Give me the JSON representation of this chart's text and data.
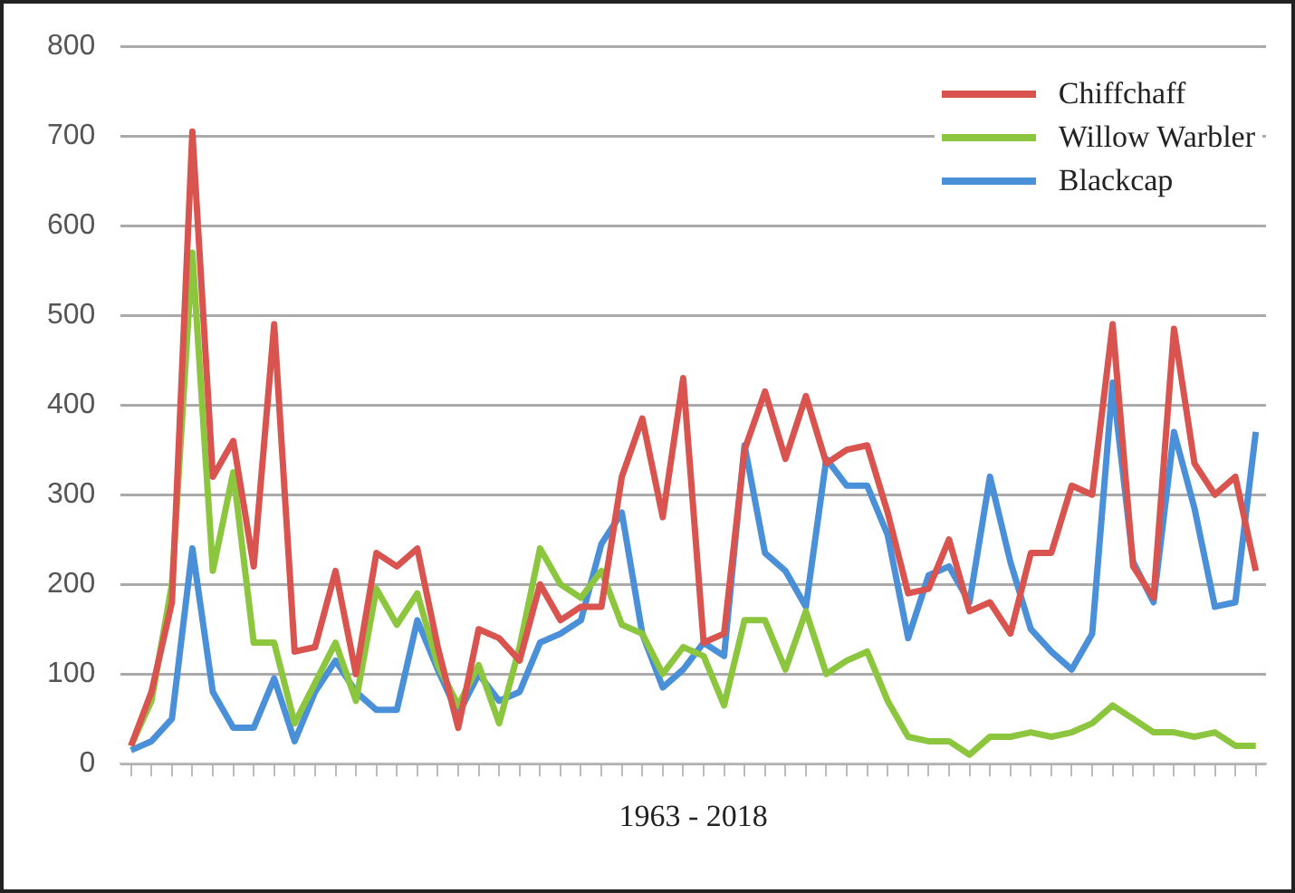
{
  "chart_data": {
    "type": "line",
    "xlabel": "1963 - 2018",
    "categories": [
      null,
      null,
      null,
      null,
      null,
      null,
      null,
      null,
      null,
      null,
      null,
      null,
      null,
      null,
      null,
      null,
      null,
      null,
      null,
      null,
      null,
      null,
      null,
      null,
      null,
      null,
      null,
      null,
      null,
      null,
      null,
      null,
      null,
      null,
      null,
      null,
      null,
      null,
      null,
      null,
      null,
      null,
      null,
      null,
      null,
      null,
      null,
      null,
      null,
      null,
      null,
      null,
      null,
      null,
      null,
      null
    ],
    "series": [
      {
        "name": "Chiffchaff",
        "color": "#d9534f",
        "values": [
          20,
          80,
          180,
          705,
          320,
          360,
          220,
          490,
          125,
          130,
          215,
          100,
          235,
          220,
          240,
          130,
          40,
          150,
          140,
          115,
          200,
          160,
          175,
          175,
          320,
          385,
          275,
          430,
          135,
          145,
          350,
          415,
          340,
          410,
          335,
          350,
          355,
          280,
          190,
          195,
          250,
          170,
          180,
          145,
          235,
          235,
          310,
          300,
          490,
          220,
          185,
          485,
          335,
          300,
          320,
          215
        ]
      },
      {
        "name": "Willow Warbler",
        "color": "#8cc63f",
        "values": [
          20,
          70,
          200,
          570,
          215,
          325,
          135,
          135,
          45,
          90,
          135,
          70,
          195,
          155,
          190,
          110,
          65,
          110,
          45,
          130,
          240,
          200,
          185,
          215,
          155,
          145,
          100,
          130,
          120,
          65,
          160,
          160,
          105,
          170,
          100,
          115,
          125,
          70,
          30,
          25,
          25,
          10,
          30,
          30,
          35,
          30,
          35,
          45,
          65,
          50,
          35,
          35,
          30,
          35,
          20,
          20
        ]
      },
      {
        "name": "Blackcap",
        "color": "#4a90d9",
        "values": [
          15,
          25,
          50,
          240,
          80,
          40,
          40,
          95,
          25,
          80,
          115,
          80,
          60,
          60,
          160,
          105,
          55,
          100,
          70,
          80,
          135,
          145,
          160,
          245,
          280,
          145,
          85,
          105,
          135,
          120,
          355,
          235,
          215,
          175,
          340,
          310,
          310,
          255,
          140,
          210,
          220,
          180,
          320,
          225,
          150,
          125,
          105,
          145,
          425,
          225,
          180,
          370,
          285,
          175,
          180,
          370
        ]
      }
    ],
    "ylim": [
      0,
      800
    ],
    "yticks": [
      0,
      100,
      200,
      300,
      400,
      500,
      600,
      700,
      800
    ],
    "grid": "y",
    "legend": "top right",
    "marker": "none",
    "line_style": "solid"
  }
}
